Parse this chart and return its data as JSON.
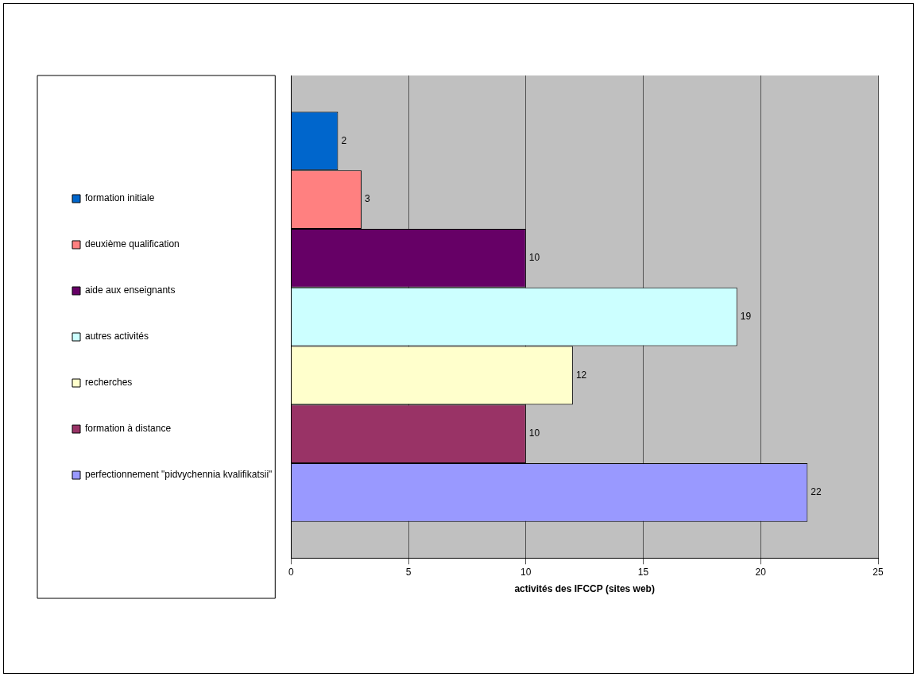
{
  "chart_data": {
    "type": "bar",
    "orientation": "horizontal",
    "xlabel": "activités des IFCCP (sites web)",
    "categories": [
      null
    ],
    "series": [
      {
        "name": "formation initiale",
        "color": "#0066cc",
        "values": [
          2
        ]
      },
      {
        "name": "deuxième qualification",
        "color": "#ff8080",
        "values": [
          3
        ]
      },
      {
        "name": "aide aux enseignants",
        "color": "#660066",
        "values": [
          10
        ]
      },
      {
        "name": "autres activités",
        "color": "#ccffff",
        "values": [
          19
        ]
      },
      {
        "name": "recherches",
        "color": "#ffffcc",
        "values": [
          12
        ]
      },
      {
        "name": "formation à distance",
        "color": "#993366",
        "values": [
          10
        ]
      },
      {
        "name": "perfectionnement \"pidvychennia kvalifikatsii\"",
        "color": "#9999ff",
        "values": [
          22
        ]
      }
    ],
    "xlim": [
      0,
      25
    ],
    "xticks": [
      0,
      5,
      10,
      15,
      20,
      25
    ],
    "grid": "x",
    "legend": "left",
    "data_labels": true
  }
}
